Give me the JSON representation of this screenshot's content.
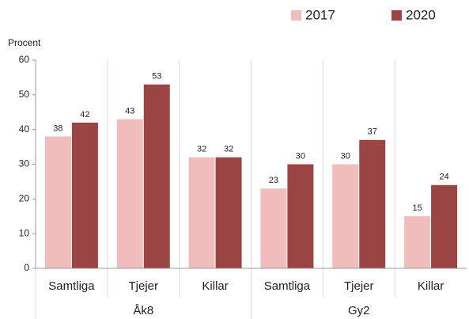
{
  "chart_data": {
    "type": "bar",
    "y_label": "Procent",
    "groups": [
      {
        "name": "Åk8",
        "categories": [
          "Samtliga",
          "Tjejer",
          "Killar"
        ]
      },
      {
        "name": "Gy2",
        "categories": [
          "Samtliga",
          "Tjejer",
          "Killar"
        ]
      }
    ],
    "series": [
      {
        "name": "2017",
        "color": "#f0bcbc",
        "values": [
          38,
          43,
          32,
          23,
          30,
          15
        ]
      },
      {
        "name": "2020",
        "color": "#9b4444",
        "values": [
          42,
          53,
          32,
          30,
          37,
          24
        ]
      }
    ],
    "ylim": [
      0,
      60
    ],
    "yticks": [
      0,
      10,
      20,
      30,
      40,
      50,
      60
    ],
    "legend": "top-right"
  }
}
